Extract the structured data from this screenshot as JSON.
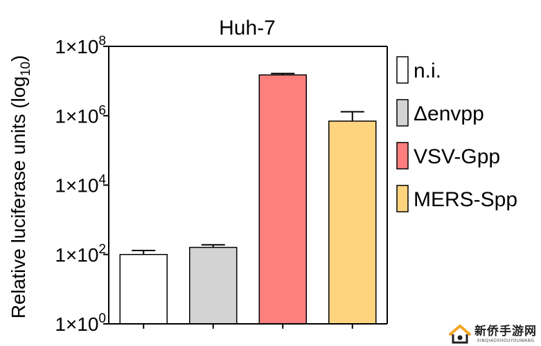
{
  "chart_data": {
    "type": "bar",
    "title": "Huh-7",
    "ylabel": {
      "prefix": "Relative luciferase units (log",
      "sub": "10",
      "suffix": ")"
    },
    "xlabel": "",
    "yscale": "log10",
    "ylim": [
      1,
      100000000
    ],
    "y_ticks": [
      {
        "value": 1,
        "base": "1×10",
        "exp": "0"
      },
      {
        "value": 100,
        "base": "1×10",
        "exp": "2"
      },
      {
        "value": 10000,
        "base": "1×10",
        "exp": "4"
      },
      {
        "value": 1000000,
        "base": "1×10",
        "exp": "6"
      },
      {
        "value": 100000000,
        "base": "1×10",
        "exp": "8"
      }
    ],
    "categories": [
      "n.i.",
      "Δenvpp",
      "VSV-Gpp",
      "MERS-Spp"
    ],
    "values": [
      100,
      160,
      15000000,
      700000
    ],
    "errors": [
      130,
      190,
      16500000,
      1300000
    ],
    "colors": [
      "#ffffff",
      "#d3d3d3",
      "#ff7f7f",
      "#ffd47f"
    ],
    "legend": [
      "n.i.",
      "Δenvpp",
      "VSV-Gpp",
      "MERS-Spp"
    ],
    "legend_position": "right",
    "grid": false
  },
  "watermark": {
    "main": "新侨手游网",
    "sub": "XINQIAOSHOUYOUWANG"
  }
}
